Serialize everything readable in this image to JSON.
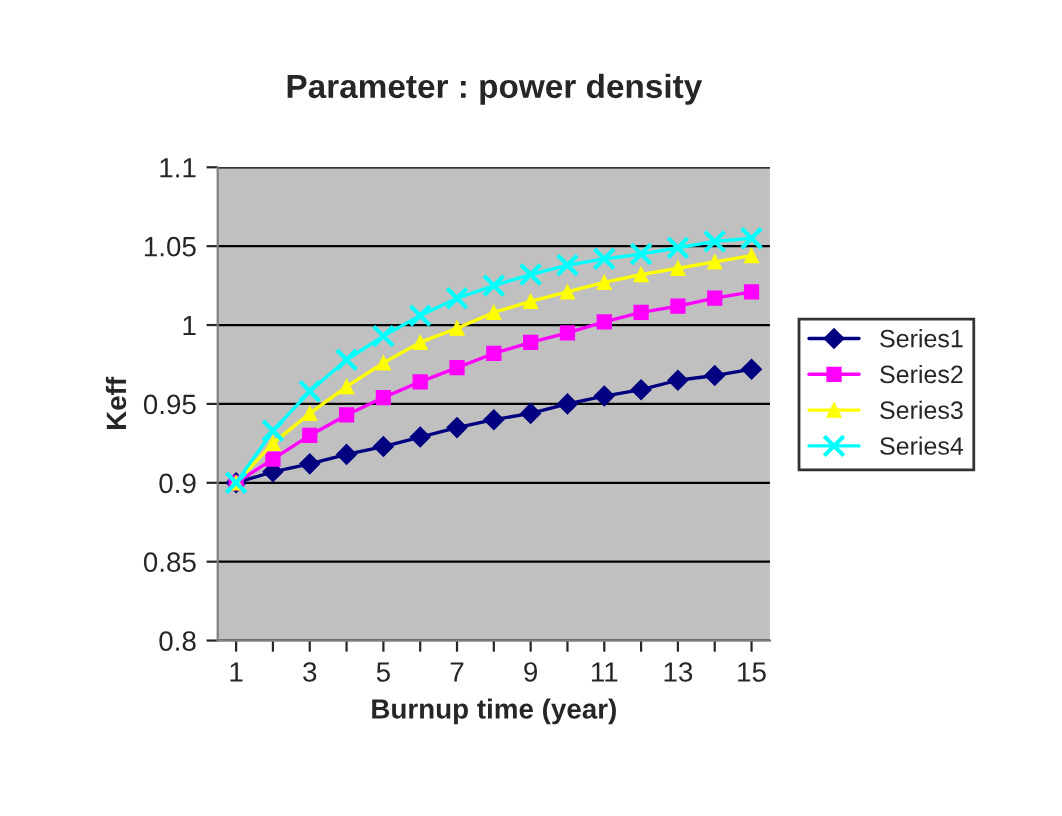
{
  "chart_data": {
    "type": "line",
    "title": "Parameter : power density",
    "xlabel": "Burnup time (year)",
    "ylabel": "Keff",
    "categories": [
      "1",
      null,
      "3",
      null,
      "5",
      null,
      "7",
      null,
      "9",
      null,
      "11",
      null,
      "13",
      null,
      "15"
    ],
    "series": [
      {
        "name": "Series1",
        "color": "#000080",
        "marker": "diamond",
        "values": [
          0.9,
          0.907,
          0.912,
          0.918,
          0.923,
          0.929,
          0.935,
          0.94,
          0.944,
          0.95,
          0.955,
          0.959,
          0.965,
          0.968,
          0.972
        ]
      },
      {
        "name": "Series2",
        "color": "#ff00ff",
        "marker": "square",
        "values": [
          0.9,
          0.915,
          0.93,
          0.943,
          0.954,
          0.964,
          0.973,
          0.982,
          0.989,
          0.995,
          1.002,
          1.008,
          1.012,
          1.017,
          1.021
        ]
      },
      {
        "name": "Series3",
        "color": "#ffff00",
        "marker": "triangle",
        "values": [
          0.9,
          0.925,
          0.944,
          0.961,
          0.976,
          0.989,
          0.998,
          1.008,
          1.015,
          1.021,
          1.027,
          1.032,
          1.036,
          1.04,
          1.044
        ]
      },
      {
        "name": "Series4",
        "color": "#00ffff",
        "marker": "cross",
        "values": [
          0.9,
          0.933,
          0.958,
          0.978,
          0.993,
          1.006,
          1.017,
          1.025,
          1.032,
          1.038,
          1.042,
          1.045,
          1.049,
          1.053,
          1.055
        ]
      }
    ],
    "ylim": [
      0.8,
      1.1
    ],
    "yticks": [
      0.8,
      0.85,
      0.9,
      0.95,
      1,
      1.05,
      1.1
    ],
    "grid": "y",
    "legend": "right"
  }
}
